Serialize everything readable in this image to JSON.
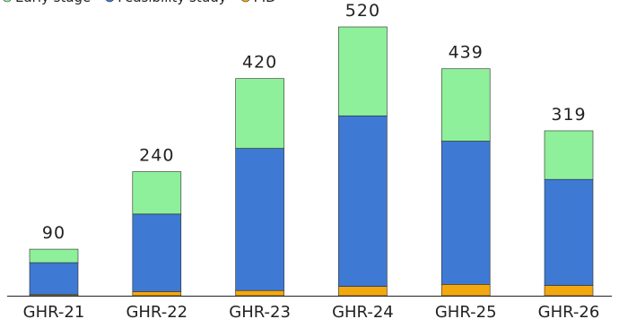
{
  "chart_data": {
    "type": "bar",
    "stacked": true,
    "categories": [
      "GHR-21",
      "GHR-22",
      "GHR-23",
      "GHR-24",
      "GHR-25",
      "GHR-26"
    ],
    "series": [
      {
        "name": "PID",
        "color": "#f2a80f",
        "values": [
          2,
          8,
          10,
          18,
          22,
          20
        ]
      },
      {
        "name": "Feasibility study",
        "color": "#3e79d4",
        "values": [
          62,
          150,
          275,
          330,
          277,
          205
        ]
      },
      {
        "name": "Early stage",
        "color": "#8ef09a",
        "values": [
          26,
          82,
          135,
          172,
          140,
          94
        ]
      }
    ],
    "totals": [
      "90",
      "240",
      "420",
      "520",
      "439",
      "319"
    ],
    "ylim": [
      0,
      520
    ],
    "grid": false,
    "legend": "top-left"
  }
}
